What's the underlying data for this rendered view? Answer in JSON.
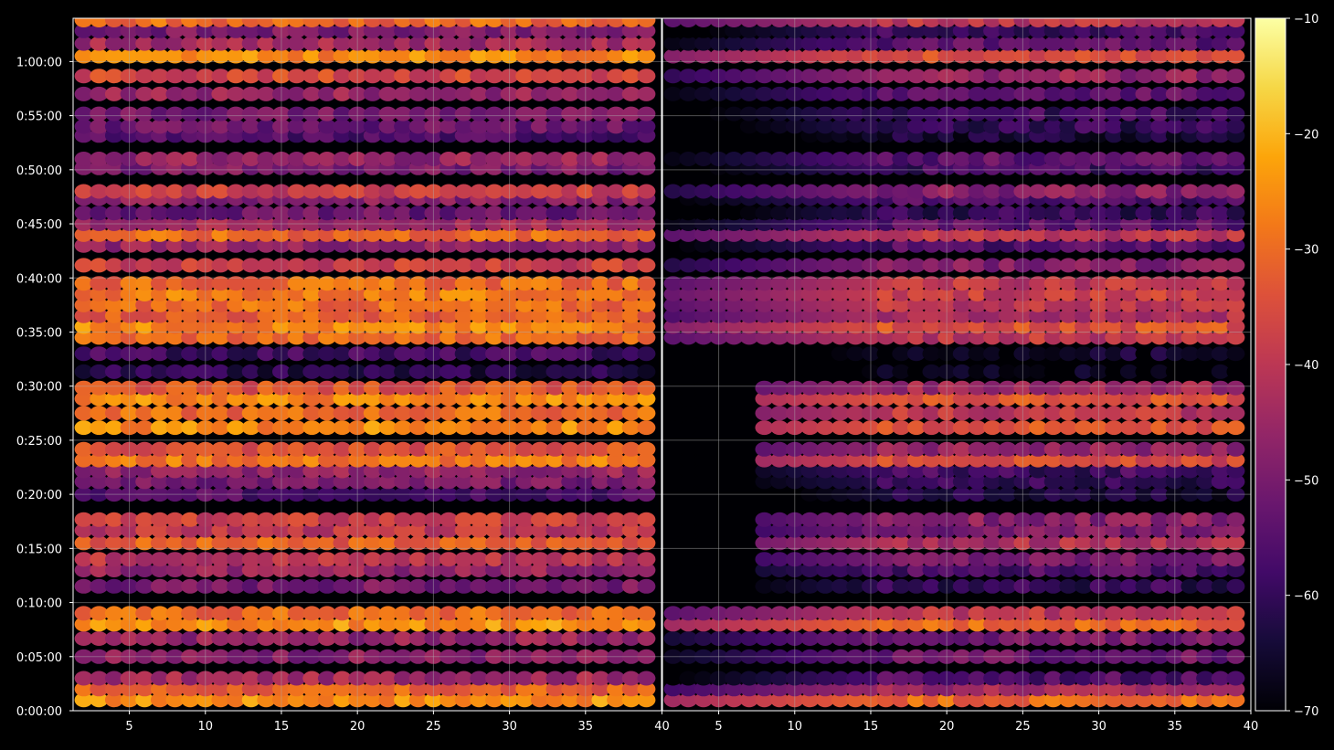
{
  "chart_data": {
    "type": "heatmap",
    "panels": [
      {
        "name": "",
        "x_range": [
          1.3,
          40
        ],
        "x_ticks": [
          5,
          10,
          15,
          20,
          25,
          30,
          35,
          40
        ],
        "y_range_seconds": [
          0,
          3840
        ],
        "y_ticks_labels": [
          "0:00:00",
          "0:05:00",
          "0:10:00",
          "0:15:00",
          "0:20:00",
          "0:25:00",
          "0:30:00",
          "0:35:00",
          "0:40:00",
          "0:45:00",
          "0:50:00",
          "0:55:00",
          "1:00:00"
        ],
        "y_ticks_seconds": [
          0,
          300,
          600,
          900,
          1200,
          1500,
          1800,
          2100,
          2400,
          2700,
          3000,
          3300,
          3600
        ],
        "grid": true,
        "x_columns": 38,
        "row_levels_db": [
          {
            "t": 60,
            "db": -25
          },
          {
            "t": 120,
            "db": -32
          },
          {
            "t": 180,
            "db": -44
          },
          {
            "t": 300,
            "db": -48
          },
          {
            "t": 400,
            "db": -46
          },
          {
            "t": 480,
            "db": -25
          },
          {
            "t": 540,
            "db": -30
          },
          {
            "t": 690,
            "db": -50
          },
          {
            "t": 780,
            "db": -46
          },
          {
            "t": 840,
            "db": -40
          },
          {
            "t": 930,
            "db": -32
          },
          {
            "t": 1000,
            "db": -40
          },
          {
            "t": 1060,
            "db": -38
          },
          {
            "t": 1200,
            "db": -56
          },
          {
            "t": 1270,
            "db": -50
          },
          {
            "t": 1330,
            "db": -46
          },
          {
            "t": 1390,
            "db": -28
          },
          {
            "t": 1450,
            "db": -34
          },
          {
            "t": 1570,
            "db": -26
          },
          {
            "t": 1650,
            "db": -30
          },
          {
            "t": 1730,
            "db": -26
          },
          {
            "t": 1790,
            "db": -34
          },
          {
            "t": 1880,
            "db": -62
          },
          {
            "t": 1980,
            "db": -58
          },
          {
            "t": 2070,
            "db": -30
          },
          {
            "t": 2130,
            "db": -26
          },
          {
            "t": 2190,
            "db": -32
          },
          {
            "t": 2250,
            "db": -30
          },
          {
            "t": 2310,
            "db": -28
          },
          {
            "t": 2370,
            "db": -30
          },
          {
            "t": 2470,
            "db": -38
          },
          {
            "t": 2580,
            "db": -46
          },
          {
            "t": 2640,
            "db": -30
          },
          {
            "t": 2700,
            "db": -44
          },
          {
            "t": 2760,
            "db": -52
          },
          {
            "t": 2840,
            "db": -48
          },
          {
            "t": 2880,
            "db": -38
          },
          {
            "t": 3010,
            "db": -50
          },
          {
            "t": 3060,
            "db": -46
          },
          {
            "t": 3190,
            "db": -56
          },
          {
            "t": 3240,
            "db": -52
          },
          {
            "t": 3310,
            "db": -50
          },
          {
            "t": 3420,
            "db": -46
          },
          {
            "t": 3520,
            "db": -36
          },
          {
            "t": 3630,
            "db": -26
          },
          {
            "t": 3700,
            "db": -44
          },
          {
            "t": 3770,
            "db": -50
          },
          {
            "t": 3830,
            "db": -30
          }
        ]
      },
      {
        "name": "",
        "x_range": [
          1.3,
          40
        ],
        "x_ticks": [
          5,
          10,
          15,
          20,
          25,
          30,
          35,
          40
        ],
        "grid": true,
        "x_columns": 38,
        "row_levels_db": [
          {
            "t": 60,
            "db": -30
          },
          {
            "t": 120,
            "db": -44
          },
          {
            "t": 180,
            "db": -56
          },
          {
            "t": 300,
            "db": -52
          },
          {
            "t": 400,
            "db": -50
          },
          {
            "t": 480,
            "db": -30
          },
          {
            "t": 540,
            "db": -40
          },
          {
            "t": 690,
            "db": -60
          },
          {
            "t": 780,
            "db": -56
          },
          {
            "t": 840,
            "db": -50
          },
          {
            "t": 930,
            "db": -42
          },
          {
            "t": 1000,
            "db": -50
          },
          {
            "t": 1060,
            "db": -48
          },
          {
            "t": 1200,
            "db": -64
          },
          {
            "t": 1270,
            "db": -60
          },
          {
            "t": 1330,
            "db": -58
          },
          {
            "t": 1390,
            "db": -36
          },
          {
            "t": 1450,
            "db": -46
          },
          {
            "t": 1570,
            "db": -34
          },
          {
            "t": 1650,
            "db": -40
          },
          {
            "t": 1730,
            "db": -34
          },
          {
            "t": 1790,
            "db": -44
          },
          {
            "t": 1880,
            "db": -68
          },
          {
            "t": 1980,
            "db": -66
          },
          {
            "t": 2070,
            "db": -40
          },
          {
            "t": 2130,
            "db": -34
          },
          {
            "t": 2190,
            "db": -42
          },
          {
            "t": 2250,
            "db": -40
          },
          {
            "t": 2310,
            "db": -38
          },
          {
            "t": 2370,
            "db": -40
          },
          {
            "t": 2470,
            "db": -48
          },
          {
            "t": 2580,
            "db": -56
          },
          {
            "t": 2640,
            "db": -40
          },
          {
            "t": 2700,
            "db": -54
          },
          {
            "t": 2760,
            "db": -60
          },
          {
            "t": 2840,
            "db": -56
          },
          {
            "t": 2880,
            "db": -48
          },
          {
            "t": 3010,
            "db": -58
          },
          {
            "t": 3060,
            "db": -54
          },
          {
            "t": 3190,
            "db": -64
          },
          {
            "t": 3240,
            "db": -60
          },
          {
            "t": 3310,
            "db": -58
          },
          {
            "t": 3420,
            "db": -54
          },
          {
            "t": 3520,
            "db": -46
          },
          {
            "t": 3630,
            "db": -34
          },
          {
            "t": 3700,
            "db": -54
          },
          {
            "t": 3770,
            "db": -58
          },
          {
            "t": 3830,
            "db": -40
          }
        ],
        "left_fade_columns_db": -68
      }
    ],
    "colorbar": {
      "colormap": "inferno",
      "range_db": [
        -70,
        -10
      ],
      "ticks": [
        "−10",
        "−20",
        "−30",
        "−40",
        "−50",
        "−60",
        "−70"
      ],
      "tick_values": [
        -10,
        -20,
        -30,
        -40,
        -50,
        -60,
        -70
      ]
    },
    "x_tick_labels": [
      "5",
      "10",
      "15",
      "20",
      "25",
      "30",
      "35",
      "40"
    ],
    "x_tick_labels_left_panel": [
      "5",
      "10",
      "15",
      "20",
      "25",
      "30",
      "35"
    ],
    "panel_boundary_label": "40",
    "colors": {
      "background": "#000000",
      "grid": "#b0b0b0",
      "text": "#ffffff"
    }
  }
}
